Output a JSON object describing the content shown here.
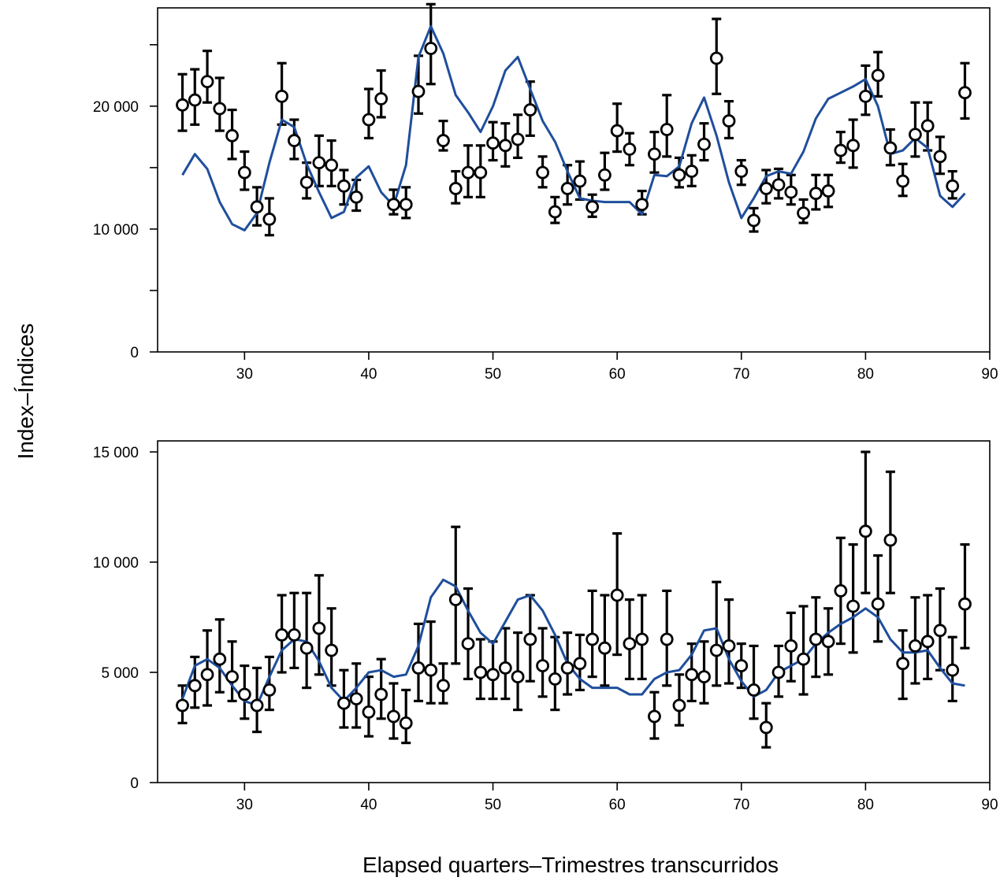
{
  "ylabel": "Index–Índices",
  "xlabel": "Elapsed quarters–Trimestres transcurridos",
  "chart_data": [
    {
      "type": "scatter",
      "title": "",
      "xlim": [
        23,
        90
      ],
      "ylim": [
        0,
        28000
      ],
      "x_ticks": [
        30,
        40,
        50,
        60,
        70,
        80,
        90
      ],
      "x_tick_labels": [
        "30",
        "40",
        "50",
        "60",
        "70",
        "80",
        "90"
      ],
      "y_ticks": [
        0,
        5000,
        10000,
        15000,
        20000,
        25000
      ],
      "y_tick_labels": [
        "0",
        "",
        "10 000",
        "",
        "20 000",
        ""
      ],
      "grid": false,
      "series": [
        {
          "kind": "points_with_error_bars",
          "x": [
            25,
            26,
            27,
            28,
            29,
            30,
            31,
            32,
            33,
            34,
            35,
            36,
            37,
            38,
            39,
            40,
            41,
            42,
            43,
            44,
            45,
            46,
            47,
            48,
            49,
            50,
            51,
            52,
            53,
            54,
            55,
            56,
            57,
            58,
            59,
            60,
            61,
            62,
            63,
            64,
            65,
            66,
            67,
            68,
            69,
            70,
            71,
            72,
            73,
            74,
            75,
            76,
            77,
            78,
            79,
            80,
            81,
            82,
            83,
            84,
            85,
            86,
            87,
            88
          ],
          "y": [
            20100,
            20500,
            22000,
            19800,
            17600,
            14600,
            11800,
            10800,
            20800,
            17200,
            13800,
            15400,
            15200,
            13500,
            12600,
            18900,
            20600,
            12000,
            12000,
            21200,
            24700,
            17200,
            13300,
            14600,
            14600,
            17000,
            16800,
            17300,
            19700,
            14600,
            11400,
            13300,
            13900,
            11800,
            14400,
            18000,
            16500,
            12000,
            16100,
            18100,
            14400,
            14700,
            16900,
            23900,
            18800,
            14700,
            10700,
            13300,
            13600,
            13000,
            11300,
            12900,
            13100,
            16400,
            16800,
            20800,
            22500,
            16600,
            13900,
            17700,
            18400,
            15900,
            13500,
            21100
          ],
          "lower": [
            18000,
            18500,
            20300,
            18000,
            15700,
            13200,
            10300,
            9500,
            18500,
            15700,
            12500,
            13500,
            13500,
            12000,
            11500,
            17400,
            19100,
            11200,
            10900,
            19400,
            21800,
            16400,
            12100,
            12600,
            12600,
            15600,
            15100,
            15800,
            17600,
            13400,
            10500,
            12000,
            12400,
            11000,
            13200,
            16300,
            15200,
            11200,
            14600,
            15900,
            13400,
            13500,
            15600,
            21000,
            17400,
            13600,
            9800,
            12100,
            12500,
            12000,
            10500,
            11600,
            11800,
            15400,
            15000,
            19300,
            20800,
            15200,
            12700,
            15900,
            16400,
            14500,
            12500,
            19000
          ],
          "upper": [
            22600,
            23000,
            24500,
            22300,
            19700,
            16300,
            13400,
            12500,
            23500,
            18900,
            15400,
            17600,
            17200,
            14800,
            14000,
            21400,
            22900,
            13200,
            13400,
            24100,
            28300,
            18800,
            14700,
            16800,
            16800,
            18700,
            18600,
            19300,
            22000,
            15900,
            12600,
            15200,
            15500,
            12800,
            16200,
            20200,
            17800,
            13100,
            17900,
            20900,
            15800,
            16000,
            18600,
            27100,
            20400,
            15600,
            11700,
            14800,
            14900,
            14400,
            12400,
            14400,
            14400,
            17900,
            18900,
            23300,
            24400,
            18100,
            15300,
            20300,
            20300,
            17500,
            14700,
            23500
          ]
        },
        {
          "kind": "line",
          "color": "#1f4e9c",
          "x": [
            25,
            26,
            27,
            28,
            29,
            30,
            31,
            32,
            33,
            34,
            35,
            36,
            37,
            38,
            39,
            40,
            41,
            42,
            43,
            44,
            45,
            46,
            47,
            48,
            49,
            50,
            51,
            52,
            53,
            54,
            55,
            56,
            57,
            58,
            59,
            60,
            61,
            62,
            63,
            64,
            65,
            66,
            67,
            68,
            69,
            70,
            71,
            72,
            73,
            74,
            75,
            76,
            77,
            78,
            79,
            80,
            81,
            82,
            83,
            84,
            85,
            86,
            87,
            88
          ],
          "y": [
            14400,
            16100,
            14900,
            12200,
            10400,
            9900,
            11300,
            15400,
            18900,
            18300,
            15300,
            13000,
            10900,
            11400,
            14200,
            15100,
            13000,
            11900,
            15200,
            24000,
            26500,
            24300,
            20900,
            19500,
            17900,
            20000,
            22900,
            24000,
            21400,
            18800,
            17100,
            14700,
            12500,
            12300,
            12200,
            12200,
            12200,
            11200,
            14400,
            14300,
            15100,
            18600,
            20700,
            17600,
            13800,
            10900,
            12500,
            14300,
            14700,
            14500,
            16300,
            19000,
            20600,
            21100,
            21600,
            22200,
            20000,
            16100,
            16400,
            17400,
            16600,
            12700,
            11800,
            12900
          ]
        }
      ]
    },
    {
      "type": "scatter",
      "title": "",
      "xlim": [
        23,
        90
      ],
      "ylim": [
        0,
        15500
      ],
      "x_ticks": [
        30,
        40,
        50,
        60,
        70,
        80,
        90
      ],
      "x_tick_labels": [
        "30",
        "40",
        "50",
        "60",
        "70",
        "80",
        "90"
      ],
      "y_ticks": [
        0,
        5000,
        10000,
        15000
      ],
      "y_tick_labels": [
        "0",
        "5 000",
        "10 000",
        "15 000"
      ],
      "grid": false,
      "series": [
        {
          "kind": "points_with_error_bars",
          "x": [
            25,
            26,
            27,
            28,
            29,
            30,
            31,
            32,
            33,
            34,
            35,
            36,
            37,
            38,
            39,
            40,
            41,
            42,
            43,
            44,
            45,
            46,
            47,
            48,
            49,
            50,
            51,
            52,
            53,
            54,
            55,
            56,
            57,
            58,
            59,
            60,
            61,
            62,
            63,
            64,
            65,
            66,
            67,
            68,
            69,
            70,
            71,
            72,
            73,
            74,
            75,
            76,
            77,
            78,
            79,
            80,
            81,
            82,
            83,
            84,
            85,
            86,
            87,
            88
          ],
          "y": [
            3500,
            4400,
            4900,
            5600,
            4800,
            4000,
            3500,
            4200,
            6700,
            6700,
            6100,
            7000,
            6000,
            3600,
            3800,
            3200,
            4000,
            3000,
            2700,
            5200,
            5100,
            4400,
            8300,
            6300,
            5000,
            4900,
            5200,
            4800,
            6500,
            5300,
            4700,
            5200,
            5400,
            6500,
            6100,
            8500,
            6300,
            6500,
            3000,
            6500,
            3500,
            4900,
            4800,
            6000,
            6200,
            5300,
            4200,
            2500,
            5000,
            6200,
            5600,
            6500,
            6400,
            8700,
            8000,
            11400,
            8100,
            11000,
            5400,
            6200,
            6400,
            6900,
            5100,
            8100
          ],
          "lower": [
            2700,
            3400,
            3500,
            4100,
            3700,
            2900,
            2300,
            3300,
            5000,
            5200,
            4300,
            4900,
            4400,
            2500,
            2500,
            2100,
            2900,
            2000,
            1800,
            3700,
            3600,
            3600,
            5400,
            4700,
            3800,
            3800,
            3800,
            3300,
            4600,
            3900,
            3300,
            4000,
            4200,
            4800,
            4400,
            5800,
            4700,
            4700,
            2000,
            4400,
            2600,
            3700,
            3600,
            4400,
            4500,
            4300,
            2900,
            1600,
            3900,
            4600,
            4000,
            4800,
            4900,
            6300,
            5900,
            8600,
            6400,
            8600,
            3800,
            4500,
            4700,
            5100,
            3700,
            6100
          ],
          "upper": [
            4400,
            5700,
            6900,
            7400,
            6400,
            5300,
            5200,
            5700,
            8500,
            8600,
            8600,
            9400,
            7900,
            5100,
            5400,
            4800,
            5600,
            4500,
            4200,
            7200,
            7300,
            5400,
            11600,
            8800,
            6500,
            6400,
            7000,
            6800,
            8500,
            7000,
            6600,
            6800,
            6700,
            8700,
            8500,
            11300,
            8300,
            8500,
            4100,
            8700,
            4900,
            6300,
            6400,
            9100,
            8300,
            6300,
            6200,
            3600,
            6200,
            7700,
            8000,
            8400,
            7900,
            11100,
            10800,
            15000,
            10300,
            14100,
            6900,
            8400,
            8500,
            8800,
            6600,
            10800
          ]
        },
        {
          "kind": "line",
          "color": "#1f4e9c",
          "x": [
            25,
            26,
            27,
            28,
            29,
            30,
            31,
            32,
            33,
            34,
            35,
            36,
            37,
            38,
            39,
            40,
            41,
            42,
            43,
            44,
            45,
            46,
            47,
            48,
            49,
            50,
            51,
            52,
            53,
            54,
            55,
            56,
            57,
            58,
            59,
            60,
            61,
            62,
            63,
            64,
            65,
            66,
            67,
            68,
            69,
            70,
            71,
            72,
            73,
            74,
            75,
            76,
            77,
            78,
            79,
            80,
            81,
            82,
            83,
            84,
            85,
            86,
            87,
            88
          ],
          "y": [
            3800,
            5300,
            5600,
            5200,
            4400,
            3700,
            3500,
            4800,
            6000,
            6500,
            6400,
            5500,
            4300,
            3700,
            4300,
            5000,
            5100,
            4800,
            4900,
            6200,
            8400,
            9200,
            8900,
            7800,
            6800,
            6300,
            7300,
            8300,
            8500,
            7800,
            6700,
            5400,
            4700,
            4300,
            4300,
            4300,
            4000,
            4000,
            4700,
            5000,
            5100,
            5800,
            6900,
            7000,
            5600,
            4600,
            3900,
            4200,
            5000,
            5300,
            5600,
            6300,
            6800,
            7200,
            7500,
            7900,
            7500,
            6500,
            5900,
            5900,
            6000,
            5200,
            4500,
            4400
          ]
        }
      ]
    }
  ]
}
